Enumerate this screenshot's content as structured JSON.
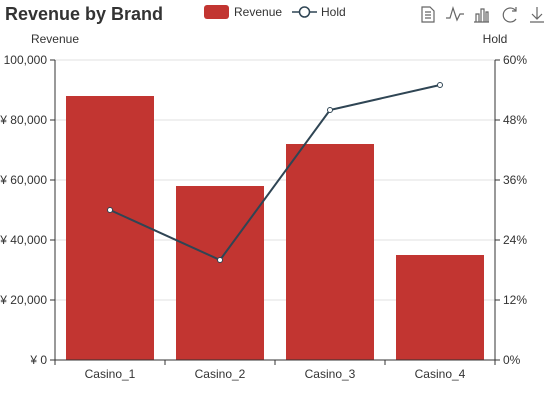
{
  "chart_data": {
    "type": "bar",
    "title": "Revenue by Brand",
    "categories": [
      "Casino_1",
      "Casino_2",
      "Casino_3",
      "Casino_4"
    ],
    "series": [
      {
        "name": "Revenue",
        "type": "bar",
        "axis": "left",
        "values": [
          88000,
          58000,
          72000,
          35000
        ],
        "color": "#c23531"
      },
      {
        "name": "Hold",
        "type": "line",
        "axis": "right",
        "values": [
          30,
          20,
          50,
          55
        ],
        "color": "#2f4554"
      }
    ],
    "y_left": {
      "name": "Revenue",
      "min": 0,
      "max": 100000,
      "interval": 20000,
      "tick_labels": [
        "¥ 0",
        "¥ 20,000",
        "¥ 40,000",
        "¥ 60,000",
        "¥ 80,000",
        "100,000"
      ]
    },
    "y_right": {
      "name": "Hold",
      "min": 0,
      "max": 60,
      "interval": 12,
      "tick_labels": [
        "0%",
        "12%",
        "24%",
        "36%",
        "48%",
        "60%"
      ]
    },
    "grid": true,
    "legend_position": "top-center"
  },
  "toolbox": [
    {
      "name": "data-view-icon"
    },
    {
      "name": "line-chart-icon"
    },
    {
      "name": "bar-chart-icon"
    },
    {
      "name": "restore-icon"
    },
    {
      "name": "save-image-icon"
    }
  ]
}
